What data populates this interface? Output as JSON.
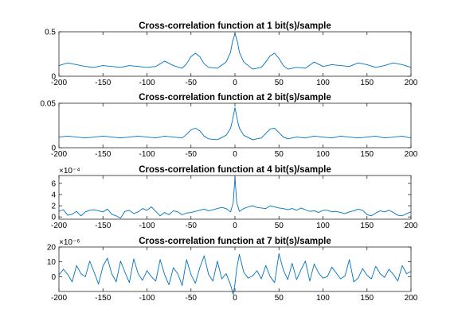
{
  "figure": {
    "line_color": "#0072bd",
    "background": "#ffffff"
  },
  "chart_data": [
    {
      "type": "line",
      "title": "Cross-correlation function at 1 bit(s)/sample",
      "xlim": [
        -200,
        200
      ],
      "ylim": [
        0,
        0.5
      ],
      "xticks": [
        -200,
        -150,
        -100,
        -50,
        0,
        50,
        100,
        150,
        200
      ],
      "xtick_labels": [
        "-200",
        "-150",
        "-100",
        "-50",
        "0",
        "50",
        "100",
        "150",
        "200"
      ],
      "yticks": [
        0,
        0.5
      ],
      "ytick_labels": [
        "0",
        "0.5"
      ],
      "exponent_label": "",
      "x": [
        -200,
        -190,
        -180,
        -170,
        -160,
        -150,
        -140,
        -130,
        -120,
        -110,
        -100,
        -90,
        -80,
        -70,
        -60,
        -55,
        -50,
        -45,
        -40,
        -35,
        -30,
        -20,
        -10,
        -5,
        -3,
        0,
        3,
        5,
        10,
        20,
        30,
        35,
        40,
        45,
        50,
        55,
        60,
        70,
        80,
        90,
        100,
        110,
        120,
        130,
        140,
        150,
        160,
        170,
        180,
        190,
        200
      ],
      "y": [
        0.12,
        0.15,
        0.13,
        0.11,
        0.1,
        0.12,
        0.11,
        0.1,
        0.12,
        0.11,
        0.1,
        0.11,
        0.17,
        0.12,
        0.09,
        0.14,
        0.22,
        0.26,
        0.22,
        0.14,
        0.1,
        0.09,
        0.16,
        0.27,
        0.38,
        0.48,
        0.38,
        0.27,
        0.16,
        0.08,
        0.1,
        0.16,
        0.23,
        0.26,
        0.2,
        0.12,
        0.08,
        0.1,
        0.09,
        0.16,
        0.11,
        0.13,
        0.12,
        0.11,
        0.15,
        0.13,
        0.1,
        0.12,
        0.15,
        0.13,
        0.1
      ]
    },
    {
      "type": "line",
      "title": "Cross-correlation function at 2 bit(s)/sample",
      "xlim": [
        -200,
        200
      ],
      "ylim": [
        0,
        0.05
      ],
      "xticks": [
        -200,
        -150,
        -100,
        -50,
        0,
        50,
        100,
        150,
        200
      ],
      "xtick_labels": [
        "-200",
        "-150",
        "-100",
        "-50",
        "0",
        "50",
        "100",
        "150",
        "200"
      ],
      "yticks": [
        0,
        0.05
      ],
      "ytick_labels": [
        "0",
        "0.05"
      ],
      "exponent_label": "",
      "x": [
        -200,
        -190,
        -180,
        -170,
        -160,
        -150,
        -140,
        -130,
        -120,
        -110,
        -100,
        -90,
        -80,
        -70,
        -60,
        -55,
        -50,
        -45,
        -40,
        -35,
        -30,
        -20,
        -10,
        -5,
        -3,
        0,
        3,
        5,
        10,
        20,
        30,
        35,
        40,
        45,
        50,
        55,
        60,
        70,
        80,
        90,
        100,
        110,
        120,
        130,
        140,
        150,
        160,
        170,
        180,
        190,
        200
      ],
      "y": [
        0.012,
        0.013,
        0.012,
        0.011,
        0.012,
        0.013,
        0.012,
        0.011,
        0.012,
        0.013,
        0.012,
        0.011,
        0.013,
        0.012,
        0.011,
        0.015,
        0.02,
        0.022,
        0.019,
        0.013,
        0.01,
        0.009,
        0.014,
        0.022,
        0.03,
        0.045,
        0.03,
        0.022,
        0.014,
        0.009,
        0.011,
        0.016,
        0.021,
        0.022,
        0.017,
        0.012,
        0.01,
        0.012,
        0.011,
        0.013,
        0.012,
        0.011,
        0.013,
        0.012,
        0.011,
        0.012,
        0.013,
        0.011,
        0.012,
        0.013,
        0.011
      ]
    },
    {
      "type": "line",
      "title": "Cross-correlation function at 4 bit(s)/sample",
      "xlim": [
        -200,
        200
      ],
      "ylim": [
        -0.4,
        7.4
      ],
      "xticks": [
        -200,
        -150,
        -100,
        -50,
        0,
        50,
        100,
        150,
        200
      ],
      "xtick_labels": [
        "-200",
        "-150",
        "-100",
        "-50",
        "0",
        "50",
        "100",
        "150",
        "200"
      ],
      "yticks": [
        0,
        2,
        4,
        6
      ],
      "ytick_labels": [
        "0",
        "2",
        "4",
        "6"
      ],
      "exponent_label": "×10⁻⁴",
      "x": [
        -200,
        -195,
        -190,
        -185,
        -180,
        -175,
        -170,
        -165,
        -160,
        -155,
        -150,
        -145,
        -140,
        -135,
        -130,
        -125,
        -120,
        -115,
        -110,
        -105,
        -100,
        -95,
        -90,
        -85,
        -80,
        -75,
        -70,
        -65,
        -60,
        -55,
        -50,
        -45,
        -40,
        -35,
        -30,
        -25,
        -20,
        -15,
        -10,
        -5,
        -2,
        0,
        2,
        5,
        10,
        15,
        20,
        25,
        30,
        35,
        40,
        45,
        50,
        55,
        60,
        65,
        70,
        75,
        80,
        85,
        90,
        95,
        100,
        105,
        110,
        115,
        120,
        125,
        130,
        135,
        140,
        145,
        150,
        155,
        160,
        165,
        170,
        175,
        180,
        185,
        190,
        195,
        200
      ],
      "y": [
        1.0,
        1.3,
        0.3,
        0.5,
        1.0,
        0.2,
        0.9,
        1.2,
        1.3,
        1.1,
        0.9,
        1.4,
        0.5,
        0.2,
        -0.2,
        1.0,
        1.2,
        0.6,
        0.9,
        1.5,
        1.2,
        1.8,
        1.0,
        0.2,
        0.8,
        0.4,
        1.1,
        0.9,
        0.4,
        0.7,
        0.8,
        1.0,
        1.2,
        1.4,
        1.1,
        1.3,
        1.5,
        1.7,
        1.5,
        0.9,
        2.5,
        7.1,
        2.6,
        1.0,
        1.5,
        1.8,
        2.0,
        1.7,
        1.6,
        1.5,
        2.0,
        1.8,
        1.6,
        1.5,
        1.3,
        1.5,
        1.2,
        1.6,
        1.3,
        1.0,
        1.1,
        0.8,
        1.2,
        1.2,
        0.9,
        1.0,
        0.8,
        0.6,
        0.9,
        1.1,
        1.4,
        1.2,
        0.4,
        0.2,
        0.7,
        1.1,
        0.9,
        1.2,
        0.8,
        0.3,
        0.2,
        0.6,
        0.9
      ]
    },
    {
      "type": "line",
      "title": "Cross-correlation function at 7 bit(s)/sample",
      "xlim": [
        -200,
        200
      ],
      "ylim": [
        -10,
        20
      ],
      "xticks": [
        -200,
        -150,
        -100,
        -50,
        0,
        50,
        100,
        150,
        200
      ],
      "xtick_labels": [
        "-200",
        "-150",
        "-100",
        "-50",
        "0",
        "50",
        "100",
        "150",
        "200"
      ],
      "yticks": [
        0,
        10,
        20
      ],
      "ytick_labels": [
        "0",
        "10",
        "20"
      ],
      "exponent_label": "×10⁻⁶",
      "x": [
        -200,
        -195,
        -190,
        -185,
        -180,
        -175,
        -170,
        -165,
        -160,
        -155,
        -150,
        -145,
        -140,
        -135,
        -130,
        -125,
        -120,
        -115,
        -110,
        -105,
        -100,
        -95,
        -90,
        -85,
        -80,
        -75,
        -70,
        -65,
        -60,
        -55,
        -50,
        -45,
        -40,
        -35,
        -30,
        -25,
        -20,
        -15,
        -10,
        -5,
        -2,
        0,
        2,
        5,
        10,
        15,
        20,
        25,
        30,
        35,
        40,
        45,
        50,
        55,
        60,
        65,
        70,
        75,
        80,
        85,
        90,
        95,
        100,
        105,
        110,
        115,
        120,
        125,
        130,
        135,
        140,
        145,
        150,
        155,
        160,
        165,
        170,
        175,
        180,
        185,
        190,
        195,
        200
      ],
      "y": [
        1.0,
        5.0,
        1.5,
        -3.5,
        7.5,
        2.0,
        0.0,
        10.5,
        3.0,
        -5.0,
        7.0,
        12.5,
        2.0,
        -3.5,
        10.5,
        3.0,
        -4.0,
        12.0,
        2.0,
        -2.5,
        4.0,
        0.0,
        -3.0,
        11.5,
        1.5,
        -5.5,
        6.0,
        2.0,
        -6.0,
        11.5,
        1.5,
        -4.5,
        6.0,
        14.0,
        1.5,
        -3.0,
        10.5,
        -1.5,
        2.0,
        -5.5,
        -12.0,
        -5.0,
        5.5,
        15.0,
        3.0,
        -1.0,
        0.5,
        4.0,
        -1.5,
        7.5,
        0.0,
        -4.0,
        15.5,
        4.5,
        -2.0,
        9.0,
        -2.0,
        4.5,
        10.5,
        -3.0,
        8.5,
        2.5,
        -1.0,
        0.0,
        6.5,
        2.5,
        -1.5,
        0.5,
        11.5,
        -3.5,
        -1.0,
        5.5,
        1.0,
        -1.5,
        7.0,
        2.0,
        -0.5,
        5.0,
        1.5,
        -3.0,
        7.5,
        2.0,
        3.5
      ]
    }
  ]
}
